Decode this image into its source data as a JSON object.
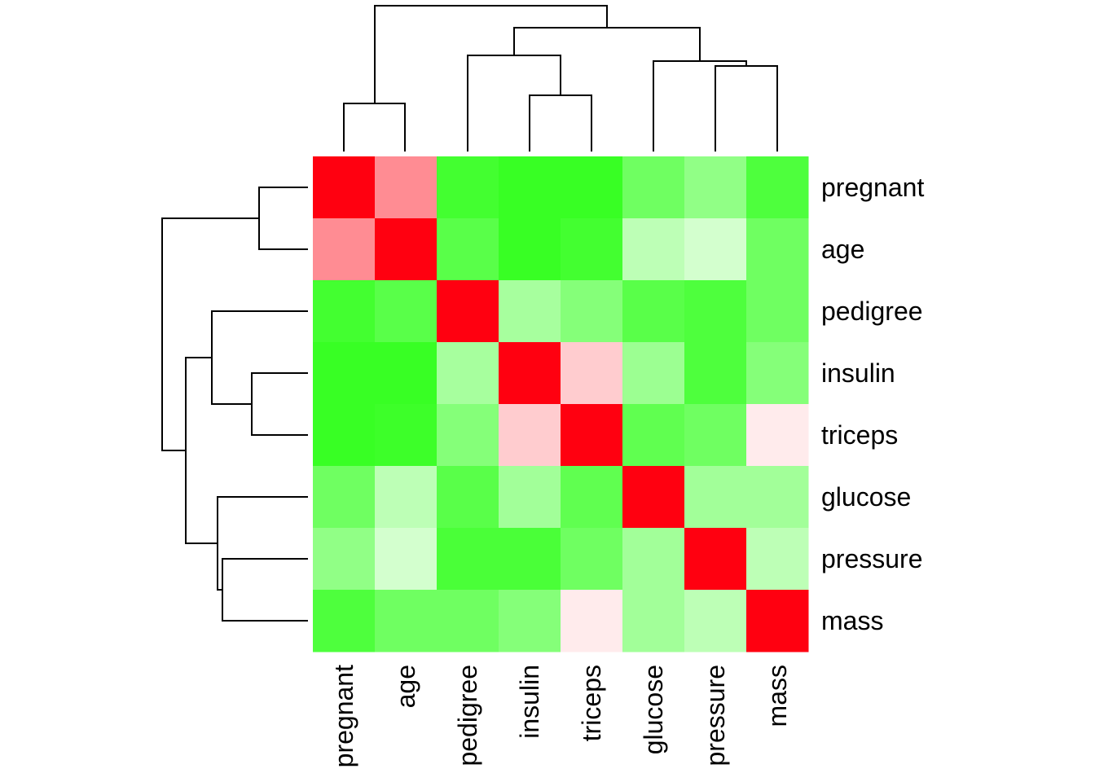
{
  "chart_data": {
    "type": "heatmap",
    "title": "",
    "xlabel": "",
    "ylabel": "",
    "row_labels": [
      "pregnant",
      "age",
      "pedigree",
      "insulin",
      "triceps",
      "glucose",
      "pressure",
      "mass"
    ],
    "col_labels": [
      "pregnant",
      "age",
      "pedigree",
      "insulin",
      "triceps",
      "glucose",
      "pressure",
      "mass"
    ],
    "values": [
      [
        1.0,
        0.45,
        -0.85,
        -0.9,
        -0.9,
        -0.65,
        -0.5,
        -0.8
      ],
      [
        0.45,
        1.0,
        -0.75,
        -0.9,
        -0.85,
        -0.3,
        -0.2,
        -0.65
      ],
      [
        -0.85,
        -0.75,
        1.0,
        -0.4,
        -0.55,
        -0.75,
        -0.8,
        -0.65
      ],
      [
        -0.9,
        -0.9,
        -0.4,
        1.0,
        0.2,
        -0.45,
        -0.8,
        -0.55
      ],
      [
        -0.9,
        -0.88,
        -0.55,
        0.2,
        1.0,
        -0.72,
        -0.65,
        0.08
      ],
      [
        -0.65,
        -0.3,
        -0.75,
        -0.42,
        -0.72,
        1.0,
        -0.42,
        -0.42
      ],
      [
        -0.5,
        -0.2,
        -0.82,
        -0.82,
        -0.65,
        -0.42,
        1.0,
        -0.3
      ],
      [
        -0.8,
        -0.65,
        -0.65,
        -0.55,
        0.08,
        -0.42,
        -0.3,
        1.0
      ]
    ],
    "value_range": [
      -1,
      1
    ],
    "colors": {
      "low": "#22ff0c",
      "mid": "#ffffff",
      "high": "#ff0010"
    },
    "dendrogram_top": true,
    "dendrogram_left": true,
    "row_labels_position": "right",
    "col_labels_position": "bottom",
    "legend": "none",
    "grid": false
  }
}
